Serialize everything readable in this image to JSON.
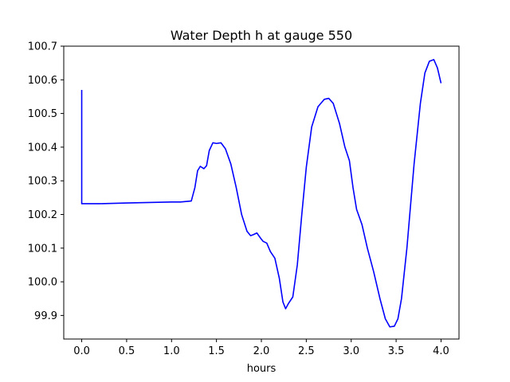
{
  "chart_data": {
    "type": "line",
    "title": "Water Depth h at gauge 550",
    "xlabel": "hours",
    "ylabel": "",
    "xlim": [
      -0.2,
      4.2
    ],
    "ylim": [
      99.83,
      100.7
    ],
    "xticks": [
      0.0,
      0.5,
      1.0,
      1.5,
      2.0,
      2.5,
      3.0,
      3.5,
      4.0
    ],
    "xtick_labels": [
      "0.0",
      "0.5",
      "1.0",
      "1.5",
      "2.0",
      "2.5",
      "3.0",
      "3.5",
      "4.0"
    ],
    "yticks": [
      99.9,
      100.0,
      100.1,
      100.2,
      100.3,
      100.4,
      100.5,
      100.6,
      100.7
    ],
    "ytick_labels": [
      "99.9",
      "100.0",
      "100.1",
      "100.2",
      "100.3",
      "100.4",
      "100.5",
      "100.6",
      "100.7"
    ],
    "grid": false,
    "series": [
      {
        "name": "",
        "color": "#0000ff",
        "points": [
          [
            0.0,
            100.57
          ],
          [
            0.0,
            100.232
          ],
          [
            0.2,
            100.232
          ],
          [
            0.5,
            100.234
          ],
          [
            0.8,
            100.236
          ],
          [
            1.0,
            100.237
          ],
          [
            1.1,
            100.237
          ],
          [
            1.22,
            100.24
          ],
          [
            1.26,
            100.28
          ],
          [
            1.29,
            100.33
          ],
          [
            1.32,
            100.343
          ],
          [
            1.36,
            100.336
          ],
          [
            1.39,
            100.345
          ],
          [
            1.42,
            100.39
          ],
          [
            1.46,
            100.413
          ],
          [
            1.5,
            100.411
          ],
          [
            1.55,
            100.413
          ],
          [
            1.6,
            100.395
          ],
          [
            1.66,
            100.35
          ],
          [
            1.72,
            100.28
          ],
          [
            1.78,
            100.2
          ],
          [
            1.84,
            100.15
          ],
          [
            1.88,
            100.137
          ],
          [
            1.91,
            100.14
          ],
          [
            1.95,
            100.145
          ],
          [
            1.99,
            100.13
          ],
          [
            2.02,
            100.12
          ],
          [
            2.06,
            100.115
          ],
          [
            2.1,
            100.09
          ],
          [
            2.15,
            100.07
          ],
          [
            2.2,
            100.01
          ],
          [
            2.24,
            99.94
          ],
          [
            2.27,
            99.92
          ],
          [
            2.3,
            99.935
          ],
          [
            2.35,
            99.955
          ],
          [
            2.4,
            100.05
          ],
          [
            2.45,
            100.2
          ],
          [
            2.5,
            100.34
          ],
          [
            2.56,
            100.46
          ],
          [
            2.63,
            100.52
          ],
          [
            2.7,
            100.542
          ],
          [
            2.75,
            100.545
          ],
          [
            2.8,
            100.53
          ],
          [
            2.87,
            100.47
          ],
          [
            2.93,
            100.4
          ],
          [
            2.98,
            100.36
          ],
          [
            3.02,
            100.28
          ],
          [
            3.06,
            100.215
          ],
          [
            3.12,
            100.17
          ],
          [
            3.18,
            100.1
          ],
          [
            3.25,
            100.03
          ],
          [
            3.32,
            99.95
          ],
          [
            3.38,
            99.89
          ],
          [
            3.43,
            99.866
          ],
          [
            3.48,
            99.868
          ],
          [
            3.52,
            99.89
          ],
          [
            3.56,
            99.95
          ],
          [
            3.62,
            100.1
          ],
          [
            3.7,
            100.35
          ],
          [
            3.77,
            100.53
          ],
          [
            3.82,
            100.62
          ],
          [
            3.87,
            100.655
          ],
          [
            3.92,
            100.66
          ],
          [
            3.96,
            100.635
          ],
          [
            4.0,
            100.59
          ]
        ]
      }
    ]
  }
}
